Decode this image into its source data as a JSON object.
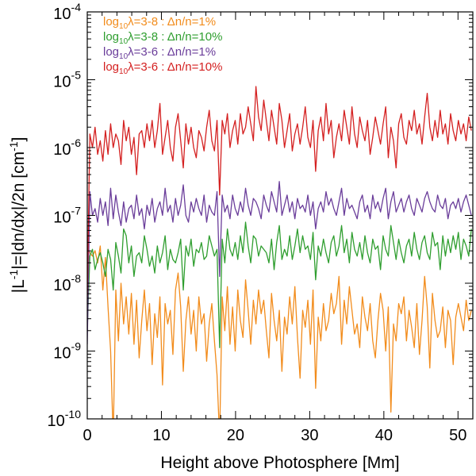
{
  "chart_data": {
    "type": "line",
    "title": "",
    "xlabel": "Height above Photosphere [Mm]",
    "ylabel": "|L⁻¹|=|dn/dx|/2n [cm⁻¹]",
    "xlim": [
      0,
      52
    ],
    "ylim": [
      1e-10,
      0.0001
    ],
    "yscale": "log",
    "x_ticks": [
      0,
      10,
      20,
      30,
      40,
      50
    ],
    "x_tick_labels": [
      "0",
      "10",
      "20",
      "30",
      "40",
      "50"
    ],
    "y_ticks": [
      1e-10,
      1e-09,
      1e-08,
      1e-07,
      1e-06,
      1e-05,
      0.0001
    ],
    "y_tick_labels": [
      {
        "base": "10",
        "exp": "-10"
      },
      {
        "base": "10",
        "exp": "-9"
      },
      {
        "base": "10",
        "exp": "-8"
      },
      {
        "base": "10",
        "exp": "-7"
      },
      {
        "base": "10",
        "exp": "-6"
      },
      {
        "base": "10",
        "exp": "-5"
      },
      {
        "base": "10",
        "exp": "-4"
      }
    ],
    "legend_position": "top-left",
    "x": [
      0.0,
      0.35,
      0.7,
      1.05,
      1.4,
      1.75,
      2.1,
      2.45,
      2.8,
      3.15,
      3.5,
      3.85,
      4.2,
      4.55,
      4.9,
      5.25,
      5.6,
      5.95,
      6.3,
      6.65,
      7.0,
      7.35,
      7.7,
      8.05,
      8.4,
      8.75,
      9.1,
      9.45,
      9.8,
      10.15,
      10.5,
      10.85,
      11.2,
      11.55,
      11.9,
      12.25,
      12.6,
      12.95,
      13.3,
      13.65,
      14.0,
      14.35,
      14.7,
      15.05,
      15.4,
      15.75,
      16.1,
      16.45,
      16.8,
      17.15,
      17.5,
      17.85,
      18.2,
      18.55,
      18.9,
      19.25,
      19.6,
      19.95,
      20.3,
      20.65,
      21.0,
      21.35,
      21.7,
      22.05,
      22.4,
      22.75,
      23.1,
      23.45,
      23.8,
      24.15,
      24.5,
      24.85,
      25.2,
      25.55,
      25.9,
      26.25,
      26.6,
      26.95,
      27.3,
      27.65,
      28.0,
      28.35,
      28.7,
      29.05,
      29.4,
      29.75,
      30.1,
      30.45,
      30.8,
      31.15,
      31.5,
      31.85,
      32.2,
      32.55,
      32.9,
      33.25,
      33.6,
      33.95,
      34.3,
      34.65,
      35.0,
      35.35,
      35.7,
      36.05,
      36.4,
      36.75,
      37.1,
      37.45,
      37.8,
      38.15,
      38.5,
      38.85,
      39.2,
      39.55,
      39.9,
      40.25,
      40.6,
      40.95,
      41.3,
      41.65,
      42.0,
      42.35,
      42.7,
      43.05,
      43.4,
      43.75,
      44.1,
      44.45,
      44.8,
      45.15,
      45.5,
      45.85,
      46.2,
      46.55,
      46.9,
      47.25,
      47.6,
      47.95,
      48.3,
      48.65,
      49.0,
      49.35,
      49.7,
      50.05,
      50.4,
      50.75,
      51.1,
      51.45,
      51.8
    ],
    "series": [
      {
        "name": "log10λ=3-8 : Δn/n=1%",
        "color": "#f28c1c",
        "log10_values": [
          -7.49,
          -7.55,
          -7.6,
          -7.52,
          -7.7,
          -7.45,
          -8.1,
          -7.62,
          -8.35,
          -9.0,
          -10.3,
          -8.1,
          -8.85,
          -8.0,
          -8.6,
          -8.2,
          -8.75,
          -8.15,
          -8.9,
          -8.25,
          -9.1,
          -8.55,
          -8.1,
          -8.7,
          -8.3,
          -9.2,
          -8.45,
          -8.8,
          -8.2,
          -9.5,
          -8.3,
          -8.6,
          -8.4,
          -9.05,
          -8.1,
          -7.85,
          -8.35,
          -9.3,
          -8.55,
          -8.2,
          -8.75,
          -8.4,
          -9.0,
          -8.2,
          -8.6,
          -8.45,
          -9.15,
          -8.6,
          -8.3,
          -8.85,
          -9.35,
          -10.3,
          -8.2,
          -8.7,
          -8.05,
          -8.9,
          -8.35,
          -9.0,
          -8.1,
          -8.55,
          -8.8,
          -7.95,
          -8.4,
          -8.9,
          -8.25,
          -8.6,
          -8.1,
          -8.45,
          -8.25,
          -8.7,
          -9.1,
          -8.15,
          -8.55,
          -8.85,
          -8.4,
          -9.3,
          -8.5,
          -8.75,
          -8.2,
          -8.6,
          -8.05,
          -8.8,
          -9.4,
          -8.4,
          -8.65,
          -8.25,
          -8.9,
          -8.1,
          -9.55,
          -8.5,
          -8.85,
          -8.3,
          -8.7,
          -8.55,
          -8.15,
          -8.45,
          -8.3,
          -7.9,
          -8.9,
          -8.25,
          -8.6,
          -8.05,
          -8.4,
          -8.75,
          -8.6,
          -8.95,
          -8.2,
          -8.5,
          -8.7,
          -8.3,
          -8.85,
          -9.1,
          -8.55,
          -8.15,
          -8.4,
          -9.0,
          -8.35,
          -9.9,
          -8.6,
          -8.85,
          -8.3,
          -8.45,
          -8.2,
          -8.85,
          -8.4,
          -8.65,
          -8.95,
          -8.3,
          -9.05,
          -8.55,
          -7.9,
          -8.35,
          -9.25,
          -8.15,
          -8.55,
          -8.8,
          -8.7,
          -8.35,
          -8.95,
          -8.4,
          -8.55,
          -9.2,
          -8.5,
          -8.3,
          -8.5,
          -8.7,
          -8.25,
          -8.55,
          -8.4,
          -8.85
        ]
      },
      {
        "name": "log10λ=3-8 : Δn/n=10%",
        "color": "#2f9e2f",
        "log10_values": [
          -8.7,
          -7.6,
          -7.5,
          -7.8,
          -7.65,
          -7.55,
          -7.7,
          -7.9,
          -7.5,
          -7.65,
          -8.1,
          -7.4,
          -7.6,
          -7.85,
          -7.2,
          -7.3,
          -7.7,
          -7.45,
          -7.9,
          -7.6,
          -7.55,
          -7.7,
          -7.3,
          -7.5,
          -7.75,
          -7.6,
          -7.85,
          -7.45,
          -7.7,
          -7.55,
          -7.3,
          -7.8,
          -7.5,
          -7.65,
          -7.7,
          -7.55,
          -7.35,
          -8.1,
          -7.45,
          -7.6,
          -7.35,
          -7.75,
          -7.5,
          -7.55,
          -7.4,
          -7.65,
          -7.6,
          -7.3,
          -7.45,
          -7.6,
          -7.5,
          -8.95,
          -7.35,
          -7.7,
          -7.2,
          -7.5,
          -7.6,
          -7.4,
          -7.65,
          -7.3,
          -7.55,
          -7.1,
          -7.45,
          -7.7,
          -7.3,
          -7.35,
          -7.6,
          -7.45,
          -7.5,
          -7.55,
          -7.7,
          -7.35,
          -7.8,
          -7.4,
          -7.15,
          -7.65,
          -7.5,
          -7.6,
          -7.3,
          -7.65,
          -7.45,
          -7.2,
          -7.55,
          -7.3,
          -7.5,
          -7.45,
          -7.65,
          -7.25,
          -7.95,
          -7.45,
          -7.6,
          -7.35,
          -7.55,
          -7.7,
          -7.4,
          -7.3,
          -7.6,
          -7.45,
          -7.15,
          -7.55,
          -7.35,
          -7.7,
          -7.25,
          -7.5,
          -7.6,
          -7.4,
          -7.65,
          -7.3,
          -7.55,
          -7.7,
          -7.35,
          -7.5,
          -7.45,
          -7.8,
          -7.3,
          -7.5,
          -7.6,
          -7.15,
          -7.4,
          -7.65,
          -7.35,
          -7.55,
          -7.7,
          -7.45,
          -7.35,
          -7.6,
          -7.25,
          -7.5,
          -7.65,
          -7.4,
          -7.3,
          -7.55,
          -7.65,
          -7.25,
          -7.45,
          -7.4,
          -7.8,
          -7.3,
          -7.6,
          -7.35,
          -7.55,
          -7.3,
          -7.5,
          -7.25,
          -7.65,
          -7.35,
          -7.45,
          -7.6,
          -7.2
        ]
      },
      {
        "name": "log10λ=3-6 : Δn/n=1%",
        "color": "#6a3d9a",
        "log10_values": [
          -8.9,
          -6.65,
          -7.0,
          -6.9,
          -7.1,
          -6.75,
          -7.0,
          -6.8,
          -7.15,
          -6.6,
          -7.05,
          -6.7,
          -6.95,
          -7.15,
          -6.8,
          -7.1,
          -6.9,
          -6.85,
          -7.05,
          -6.7,
          -7.0,
          -6.9,
          -7.2,
          -6.85,
          -7.0,
          -6.75,
          -7.1,
          -6.9,
          -6.8,
          -7.0,
          -6.6,
          -6.95,
          -6.85,
          -7.1,
          -6.75,
          -7.0,
          -6.85,
          -6.55,
          -7.0,
          -7.1,
          -6.8,
          -6.95,
          -6.75,
          -6.9,
          -7.0,
          -6.7,
          -7.1,
          -6.85,
          -6.95,
          -7.0,
          -6.65,
          -7.9,
          -6.7,
          -6.95,
          -6.85,
          -7.05,
          -6.7,
          -6.9,
          -7.0,
          -6.8,
          -6.95,
          -6.6,
          -6.85,
          -7.0,
          -6.75,
          -6.8,
          -6.9,
          -7.05,
          -6.7,
          -6.85,
          -6.95,
          -6.65,
          -6.8,
          -6.95,
          -6.5,
          -7.0,
          -6.85,
          -6.7,
          -6.95,
          -6.8,
          -7.05,
          -6.75,
          -6.9,
          -6.85,
          -6.95,
          -6.7,
          -7.0,
          -6.8,
          -7.2,
          -6.9,
          -6.8,
          -6.95,
          -6.65,
          -6.85,
          -6.75,
          -6.9,
          -7.0,
          -6.8,
          -6.6,
          -7.0,
          -6.75,
          -6.9,
          -6.85,
          -6.95,
          -7.05,
          -6.8,
          -6.7,
          -6.95,
          -6.85,
          -7.05,
          -6.7,
          -6.9,
          -6.8,
          -6.95,
          -6.75,
          -6.6,
          -7.05,
          -6.8,
          -6.65,
          -6.95,
          -6.85,
          -6.75,
          -6.95,
          -6.8,
          -6.7,
          -6.9,
          -7.0,
          -6.75,
          -6.85,
          -6.95,
          -6.75,
          -6.65,
          -6.8,
          -6.9,
          -6.95,
          -6.7,
          -6.85,
          -6.9,
          -6.75,
          -7.05,
          -6.85,
          -6.8,
          -6.9,
          -6.75,
          -6.95,
          -6.8,
          -6.7,
          -6.85,
          -7.0,
          -6.75
        ]
      },
      {
        "name": "log10λ=3-6 : Δn/n=10%",
        "color": "#d42020",
        "log10_values": [
          -8.2,
          -5.8,
          -6.0,
          -5.7,
          -6.1,
          -5.9,
          -6.2,
          -5.75,
          -6.1,
          -5.65,
          -6.0,
          -5.8,
          -5.9,
          -6.25,
          -5.6,
          -5.9,
          -5.7,
          -6.1,
          -5.85,
          -6.4,
          -5.8,
          -5.75,
          -6.0,
          -5.65,
          -5.9,
          -5.6,
          -6.0,
          -5.75,
          -5.35,
          -6.1,
          -5.85,
          -5.6,
          -6.0,
          -6.2,
          -5.7,
          -5.5,
          -5.9,
          -6.3,
          -5.65,
          -5.95,
          -5.7,
          -6.0,
          -6.15,
          -5.75,
          -5.85,
          -6.05,
          -5.7,
          -5.45,
          -5.9,
          -6.05,
          -5.6,
          -6.7,
          -5.6,
          -5.8,
          -5.5,
          -6.0,
          -5.75,
          -5.6,
          -5.95,
          -5.5,
          -5.8,
          -5.7,
          -5.4,
          -5.65,
          -5.9,
          -5.1,
          -5.55,
          -5.75,
          -5.3,
          -5.6,
          -5.9,
          -5.45,
          -5.7,
          -5.95,
          -5.35,
          -5.6,
          -6.0,
          -5.75,
          -5.5,
          -6.05,
          -5.8,
          -5.65,
          -5.95,
          -5.7,
          -5.4,
          -5.85,
          -6.0,
          -5.6,
          -6.35,
          -5.75,
          -5.55,
          -5.9,
          -5.35,
          -5.8,
          -5.6,
          -6.15,
          -5.85,
          -5.65,
          -5.9,
          -5.45,
          -5.7,
          -5.95,
          -5.4,
          -5.8,
          -6.0,
          -5.55,
          -5.75,
          -5.9,
          -5.6,
          -6.1,
          -5.85,
          -5.55,
          -5.75,
          -5.95,
          -5.65,
          -5.4,
          -6.15,
          -5.7,
          -5.9,
          -6.3,
          -5.65,
          -5.5,
          -5.85,
          -5.95,
          -5.6,
          -5.75,
          -5.45,
          -5.8,
          -5.65,
          -5.95,
          -5.55,
          -5.2,
          -5.7,
          -5.9,
          -5.6,
          -5.85,
          -5.45,
          -5.8,
          -5.65,
          -5.95,
          -5.5,
          -5.75,
          -5.9,
          -5.6,
          -5.8,
          -5.65,
          -5.9,
          -5.55,
          -5.75,
          -5.8
        ]
      }
    ],
    "legend": [
      {
        "base": "log",
        "sub": "10",
        "rest": "λ=3-8 : Δn/n=1%",
        "color": "#f28c1c"
      },
      {
        "base": "log",
        "sub": "10",
        "rest": "λ=3-8 : Δn/n=10%",
        "color": "#2f9e2f"
      },
      {
        "base": "log",
        "sub": "10",
        "rest": "λ=3-6 : Δn/n=1%",
        "color": "#6a3d9a"
      },
      {
        "base": "log",
        "sub": "10",
        "rest": "λ=3-6 : Δn/n=10%",
        "color": "#d42020"
      }
    ]
  }
}
